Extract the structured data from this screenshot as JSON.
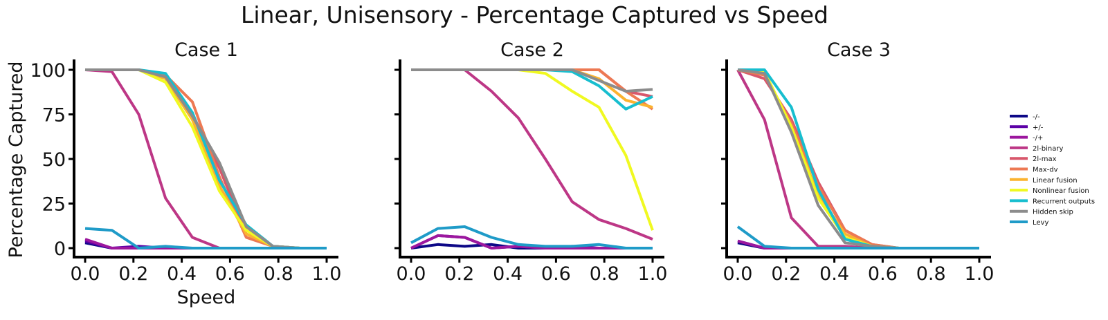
{
  "figure_title": "Linear, Unisensory - Percentage Captured vs Speed",
  "chart_data": [
    {
      "type": "line",
      "title": "Case 1",
      "xlabel": "Speed",
      "ylabel": "Percentage Captured",
      "xlim": [
        0.0,
        1.0
      ],
      "ylim": [
        -5,
        105
      ],
      "xticks": [
        "0.0",
        "0.2",
        "0.4",
        "0.6",
        "0.8",
        "1.0"
      ],
      "yticks": [
        "0",
        "25",
        "50",
        "75",
        "100"
      ],
      "x": [
        0.0,
        0.111,
        0.222,
        0.333,
        0.444,
        0.556,
        0.667,
        0.778,
        0.889,
        1.0
      ],
      "series": [
        {
          "name": "-/-",
          "color": "#0d0887",
          "values": [
            3,
            0,
            0,
            0,
            0,
            0,
            0,
            0,
            0,
            0
          ]
        },
        {
          "name": "+/-",
          "color": "#5c01a6",
          "values": [
            4,
            0,
            1,
            0,
            0,
            0,
            0,
            0,
            0,
            0
          ]
        },
        {
          "name": "-/+",
          "color": "#9c179e",
          "values": [
            5,
            0,
            0,
            0,
            0,
            0,
            0,
            0,
            0,
            0
          ]
        },
        {
          "name": "2l-binary",
          "color": "#bd3786",
          "values": [
            100,
            99,
            75,
            28,
            6,
            0,
            0,
            0,
            0,
            0
          ]
        },
        {
          "name": "2l-max",
          "color": "#d8576b",
          "values": [
            100,
            100,
            100,
            96,
            75,
            45,
            8,
            1,
            0,
            0
          ]
        },
        {
          "name": "Max-dv",
          "color": "#ed7953",
          "values": [
            100,
            100,
            100,
            97,
            82,
            40,
            6,
            1,
            0,
            0
          ]
        },
        {
          "name": "Linear fusion",
          "color": "#fbb32f",
          "values": [
            100,
            100,
            100,
            95,
            72,
            35,
            8,
            1,
            0,
            0
          ]
        },
        {
          "name": "Nonlinear fusion",
          "color": "#f0f921",
          "values": [
            100,
            100,
            100,
            93,
            68,
            32,
            10,
            1,
            0,
            0
          ]
        },
        {
          "name": "Recurrent outputs",
          "color": "#17becf",
          "values": [
            100,
            100,
            100,
            98,
            76,
            38,
            13,
            1,
            0,
            0
          ]
        },
        {
          "name": "Hidden skip",
          "color": "#8c8c8c",
          "values": [
            100,
            100,
            100,
            96,
            74,
            48,
            12,
            1,
            0,
            0
          ]
        },
        {
          "name": "Levy",
          "color": "#1f9bc8",
          "values": [
            11,
            10,
            0,
            1,
            0,
            0,
            0,
            0,
            0,
            0
          ]
        }
      ]
    },
    {
      "type": "line",
      "title": "Case 2",
      "xlabel": "",
      "ylabel": "",
      "xlim": [
        0.0,
        1.0
      ],
      "ylim": [
        -5,
        105
      ],
      "xticks": [
        "0.0",
        "0.2",
        "0.4",
        "0.6",
        "0.8",
        "1.0"
      ],
      "yticks": [],
      "x": [
        0.0,
        0.111,
        0.222,
        0.333,
        0.444,
        0.556,
        0.667,
        0.778,
        0.889,
        1.0
      ],
      "series": [
        {
          "name": "-/-",
          "color": "#0d0887",
          "values": [
            0,
            2,
            1,
            2,
            0,
            0,
            0,
            0,
            0,
            0
          ]
        },
        {
          "name": "+/-",
          "color": "#5c01a6",
          "values": [
            0,
            7,
            6,
            0,
            1,
            0,
            1,
            0,
            0,
            0
          ]
        },
        {
          "name": "-/+",
          "color": "#9c179e",
          "values": [
            0,
            7,
            6,
            0,
            1,
            0,
            0,
            0,
            0,
            0
          ]
        },
        {
          "name": "2l-binary",
          "color": "#bd3786",
          "values": [
            100,
            100,
            100,
            88,
            73,
            50,
            26,
            16,
            11,
            5
          ]
        },
        {
          "name": "2l-max",
          "color": "#d8576b",
          "values": [
            100,
            100,
            100,
            100,
            100,
            100,
            100,
            100,
            88,
            85
          ]
        },
        {
          "name": "Max-dv",
          "color": "#ed7953",
          "values": [
            100,
            100,
            100,
            100,
            100,
            100,
            100,
            100,
            88,
            78
          ]
        },
        {
          "name": "Linear fusion",
          "color": "#fbb32f",
          "values": [
            100,
            100,
            100,
            100,
            100,
            100,
            100,
            95,
            83,
            79
          ]
        },
        {
          "name": "Nonlinear fusion",
          "color": "#f0f921",
          "values": [
            100,
            100,
            100,
            100,
            100,
            98,
            88,
            79,
            52,
            10
          ]
        },
        {
          "name": "Recurrent outputs",
          "color": "#17becf",
          "values": [
            100,
            100,
            100,
            100,
            100,
            100,
            99,
            91,
            78,
            85
          ]
        },
        {
          "name": "Hidden skip",
          "color": "#8c8c8c",
          "values": [
            100,
            100,
            100,
            100,
            100,
            100,
            100,
            94,
            88,
            89
          ]
        },
        {
          "name": "Levy",
          "color": "#1f9bc8",
          "values": [
            3,
            11,
            12,
            6,
            2,
            1,
            1,
            2,
            0,
            0
          ]
        }
      ]
    },
    {
      "type": "line",
      "title": "Case 3",
      "xlabel": "",
      "ylabel": "",
      "xlim": [
        0.0,
        1.0
      ],
      "ylim": [
        -5,
        105
      ],
      "xticks": [
        "0.0",
        "0.2",
        "0.4",
        "0.6",
        "0.8",
        "1.0"
      ],
      "yticks": [],
      "x": [
        0.0,
        0.111,
        0.222,
        0.333,
        0.444,
        0.556,
        0.667,
        0.778,
        0.889,
        1.0
      ],
      "series": [
        {
          "name": "-/-",
          "color": "#0d0887",
          "values": [
            3,
            0,
            0,
            0,
            0,
            0,
            0,
            0,
            0,
            0
          ]
        },
        {
          "name": "+/-",
          "color": "#5c01a6",
          "values": [
            4,
            0,
            0,
            0,
            0,
            0,
            0,
            0,
            0,
            0
          ]
        },
        {
          "name": "-/+",
          "color": "#9c179e",
          "values": [
            4,
            0,
            0,
            0,
            0,
            0,
            0,
            0,
            0,
            0
          ]
        },
        {
          "name": "2l-binary",
          "color": "#bd3786",
          "values": [
            100,
            72,
            17,
            1,
            1,
            0,
            0,
            0,
            0,
            0
          ]
        },
        {
          "name": "2l-max",
          "color": "#d8576b",
          "values": [
            100,
            95,
            72,
            37,
            10,
            2,
            0,
            0,
            0,
            0
          ]
        },
        {
          "name": "Max-dv",
          "color": "#ed7953",
          "values": [
            100,
            97,
            70,
            35,
            10,
            2,
            0,
            0,
            0,
            0
          ]
        },
        {
          "name": "Linear fusion",
          "color": "#fbb32f",
          "values": [
            100,
            98,
            68,
            30,
            8,
            1,
            0,
            0,
            0,
            0
          ]
        },
        {
          "name": "Nonlinear fusion",
          "color": "#f0f921",
          "values": [
            100,
            99,
            68,
            28,
            6,
            1,
            0,
            0,
            0,
            0
          ]
        },
        {
          "name": "Recurrent outputs",
          "color": "#17becf",
          "values": [
            100,
            100,
            79,
            33,
            5,
            1,
            0,
            0,
            0,
            0
          ]
        },
        {
          "name": "Hidden skip",
          "color": "#8c8c8c",
          "values": [
            100,
            98,
            65,
            24,
            3,
            1,
            0,
            0,
            0,
            0
          ]
        },
        {
          "name": "Levy",
          "color": "#1f9bc8",
          "values": [
            12,
            1,
            0,
            0,
            0,
            0,
            0,
            0,
            0,
            0
          ]
        }
      ]
    }
  ],
  "legend": {
    "placement": "right",
    "entries": [
      {
        "label": "-/-",
        "color": "#0d0887"
      },
      {
        "label": "+/-",
        "color": "#5c01a6"
      },
      {
        "label": "-/+",
        "color": "#9c179e"
      },
      {
        "label": "2l-binary",
        "color": "#bd3786"
      },
      {
        "label": "2l-max",
        "color": "#d8576b"
      },
      {
        "label": "Max-dv",
        "color": "#ed7953"
      },
      {
        "label": "Linear fusion",
        "color": "#fbb32f"
      },
      {
        "label": "Nonlinear fusion",
        "color": "#f0f921"
      },
      {
        "label": "Recurrent outputs",
        "color": "#17becf"
      },
      {
        "label": "Hidden skip",
        "color": "#8c8c8c"
      },
      {
        "label": "Levy",
        "color": "#1f9bc8"
      }
    ]
  }
}
